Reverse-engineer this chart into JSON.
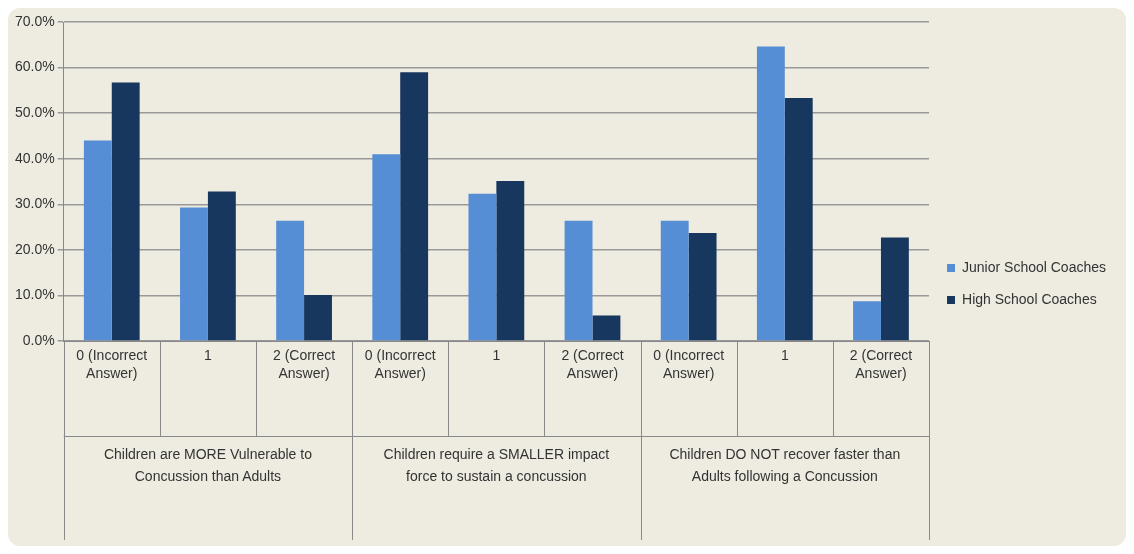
{
  "chart_data": {
    "type": "bar",
    "categories": [
      "0 (Incorrect Answer)",
      "1",
      "2 (Correct Answer)",
      "0 (Incorrect Answer)",
      "1",
      "2 (Correct Answer)",
      "0 (Incorrect Answer)",
      "1",
      "2 (Correct Answer)"
    ],
    "series": [
      {
        "name": "Junior School Coaches",
        "color": "#558ed5",
        "values": [
          44.0,
          29.3,
          26.4,
          41.0,
          32.3,
          26.4,
          26.4,
          64.6,
          8.7
        ]
      },
      {
        "name": "High School Coaches",
        "color": "#17375e",
        "values": [
          56.7,
          32.8,
          10.1,
          59.0,
          35.1,
          5.6,
          23.7,
          53.3,
          22.7
        ]
      }
    ],
    "ylim": [
      0,
      70
    ],
    "yticks": [
      {
        "value": 0,
        "label": "0.0%"
      },
      {
        "value": 10,
        "label": "10.0%"
      },
      {
        "value": 20,
        "label": "20.0%"
      },
      {
        "value": 30,
        "label": "30.0%"
      },
      {
        "value": 40,
        "label": "40.0%"
      },
      {
        "value": 50,
        "label": "50.0%"
      },
      {
        "value": 60,
        "label": "60.0%"
      },
      {
        "value": 70,
        "label": "70.0%"
      }
    ],
    "grid": "y",
    "legend": "right",
    "annotations": [
      "Children are MORE Vulnerable to Concussion than Adults",
      "Children require a SMALLER impact force to sustain a concussion",
      "Children DO NOT recover faster than Adults following a Concussion"
    ]
  }
}
